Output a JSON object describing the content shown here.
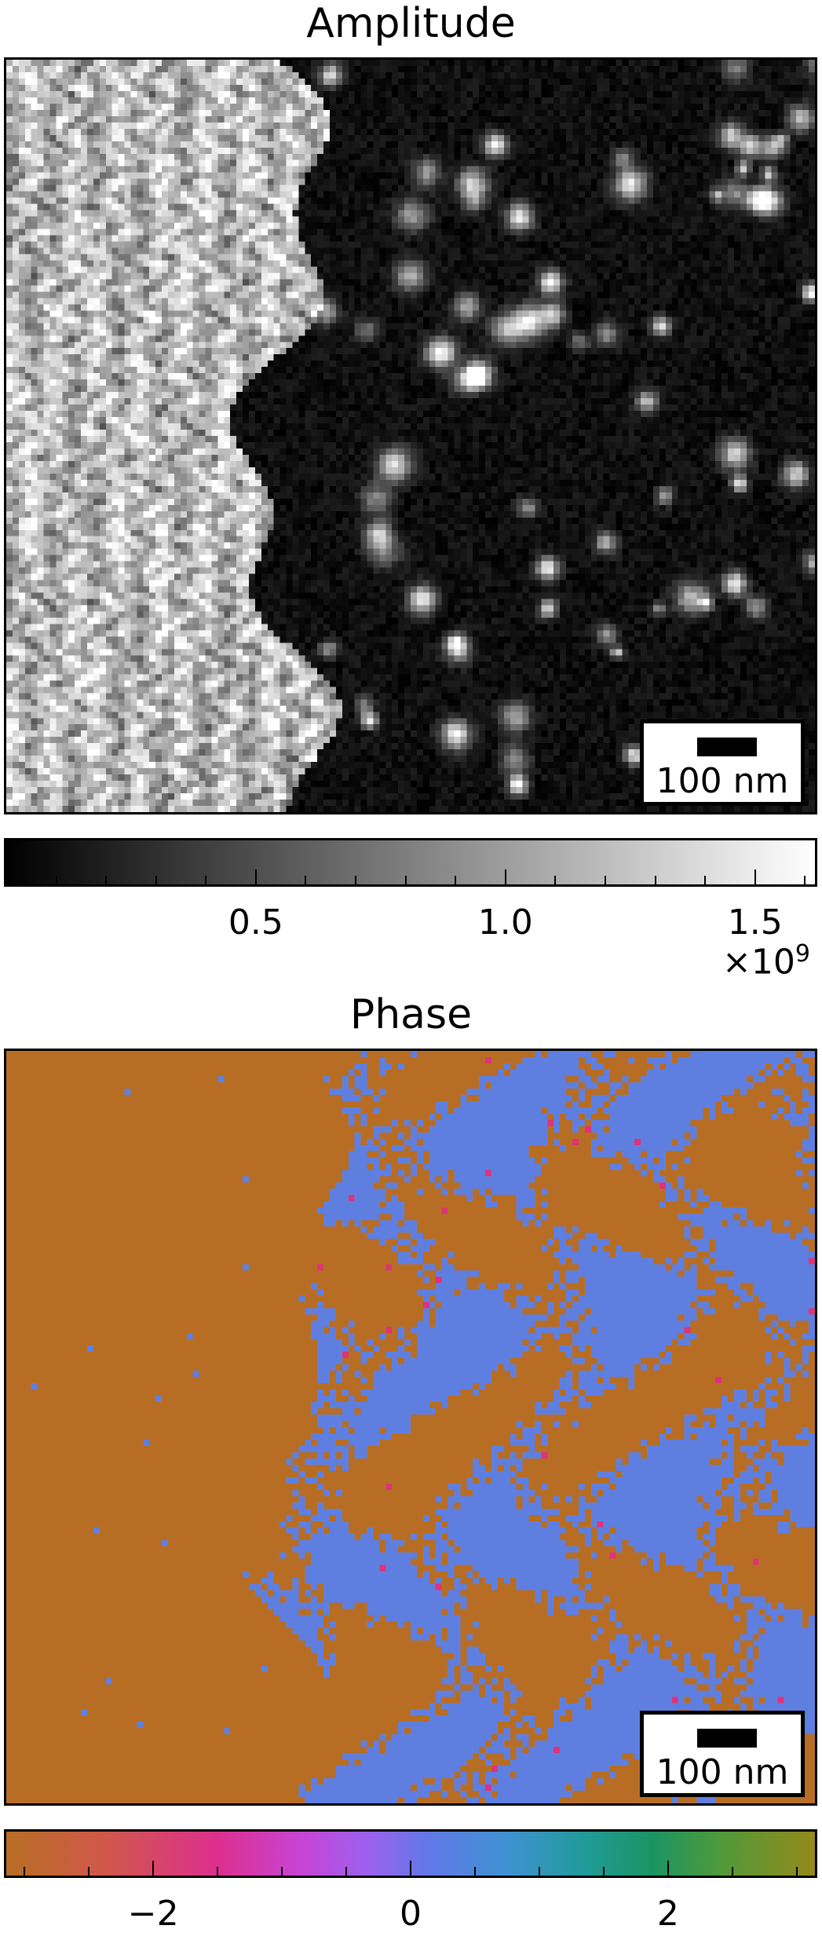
{
  "amplitude": {
    "title": "Amplitude",
    "scalebar_label": "100 nm",
    "colormap": "gray",
    "colorbar": {
      "range": [
        0.0,
        1.62
      ],
      "major_ticks": [
        0.5,
        1.0,
        1.5
      ],
      "major_tick_labels": [
        "0.5",
        "1.0",
        "1.5"
      ],
      "minor_step": 0.1,
      "multiplier_base": "×10",
      "multiplier_exp": "9"
    }
  },
  "phase": {
    "title": "Phase",
    "scalebar_label": "100 nm",
    "colormap": "cyclic phase (brown-pink-purple-blue-green-olive)",
    "colorbar": {
      "range": [
        -3.1416,
        3.1416
      ],
      "major_ticks": [
        -2,
        0,
        2
      ],
      "major_tick_labels": [
        "−2",
        "0",
        "2"
      ],
      "minor_step": 0.5
    },
    "colors": {
      "dominant_a": "#b76e24",
      "dominant_b": "#5f7fe0",
      "sparse": "#e0327a"
    }
  },
  "chart_data": [
    {
      "type": "heatmap",
      "title": "Amplitude",
      "description_values": "bright textured region on left third, dark region with scattered bright spots on right",
      "value_range": [
        0.0,
        1620000000.0
      ],
      "colorbar_ticks": [
        500000000.0,
        1000000000.0,
        1500000000.0
      ]
    },
    {
      "type": "heatmap",
      "title": "Phase",
      "value_range": [
        -3.1416,
        3.1416
      ],
      "colorbar_ticks": [
        -2,
        0,
        2
      ]
    }
  ]
}
